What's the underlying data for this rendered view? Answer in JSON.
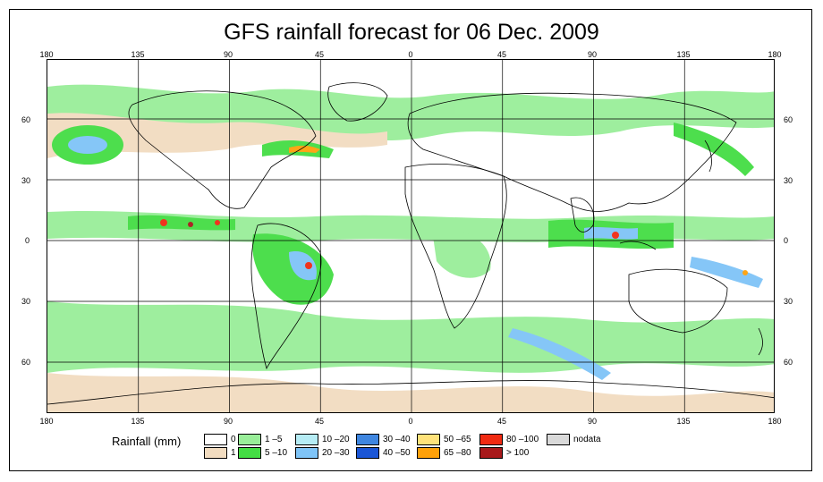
{
  "title": "GFS rainfall forecast for 06 Dec. 2009",
  "lon_labels": [
    "180",
    "135",
    "90",
    "45",
    "0",
    "45",
    "90",
    "135",
    "180"
  ],
  "lat_labels": [
    "60",
    "30",
    "0",
    "30",
    "60"
  ],
  "legend": {
    "title": "Rainfall (mm)",
    "items": [
      {
        "label": "0",
        "color": "#ffffff"
      },
      {
        "label": "1",
        "color": "#f2dcc0"
      },
      {
        "label": "1 –5",
        "color": "#99ee99"
      },
      {
        "label": "5 –10",
        "color": "#44dd44"
      },
      {
        "label": "10 –20",
        "color": "#b6ecf5"
      },
      {
        "label": "20 –30",
        "color": "#7fc4f7"
      },
      {
        "label": "30 –40",
        "color": "#3f86e0"
      },
      {
        "label": "40 –50",
        "color": "#1b56d6"
      },
      {
        "label": "50 –65",
        "color": "#ffe27a"
      },
      {
        "label": "65 –80",
        "color": "#ffa10a"
      },
      {
        "label": "80 –100",
        "color": "#f02a12"
      },
      {
        "label": "> 100",
        "color": "#a8191b"
      },
      {
        "label": "nodata",
        "color": "#d9d9d9"
      }
    ]
  }
}
